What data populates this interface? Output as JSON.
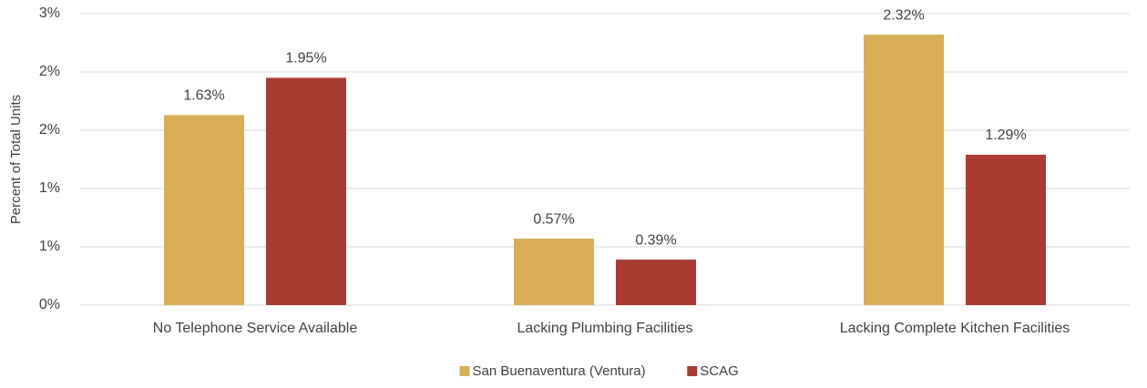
{
  "chart_data": {
    "type": "bar",
    "y_axis_label": "Percent of Total Units",
    "categories": [
      "No Telephone Service Available",
      "Lacking Plumbing Facilities",
      "Lacking Complete Kitchen Facilities"
    ],
    "series": [
      {
        "name": "San Buenaventura (Ventura)",
        "color": "#d9ae56",
        "values": [
          1.63,
          0.57,
          2.32
        ],
        "value_labels": [
          "1.63%",
          "0.57%",
          "2.32%"
        ]
      },
      {
        "name": "SCAG",
        "color": "#a93c32",
        "values": [
          1.95,
          0.39,
          1.29
        ],
        "value_labels": [
          "1.95%",
          "0.39%",
          "1.29%"
        ]
      }
    ],
    "ylim": [
      0,
      2.5
    ],
    "yticks": [
      {
        "value": 0,
        "label": "0%"
      },
      {
        "value": 0.5,
        "label": "1%"
      },
      {
        "value": 1,
        "label": "1%"
      },
      {
        "value": 1.5,
        "label": "2%"
      },
      {
        "value": 2,
        "label": "2%"
      },
      {
        "value": 2.5,
        "label": "3%"
      }
    ],
    "grid": true,
    "legend": "bottom"
  }
}
